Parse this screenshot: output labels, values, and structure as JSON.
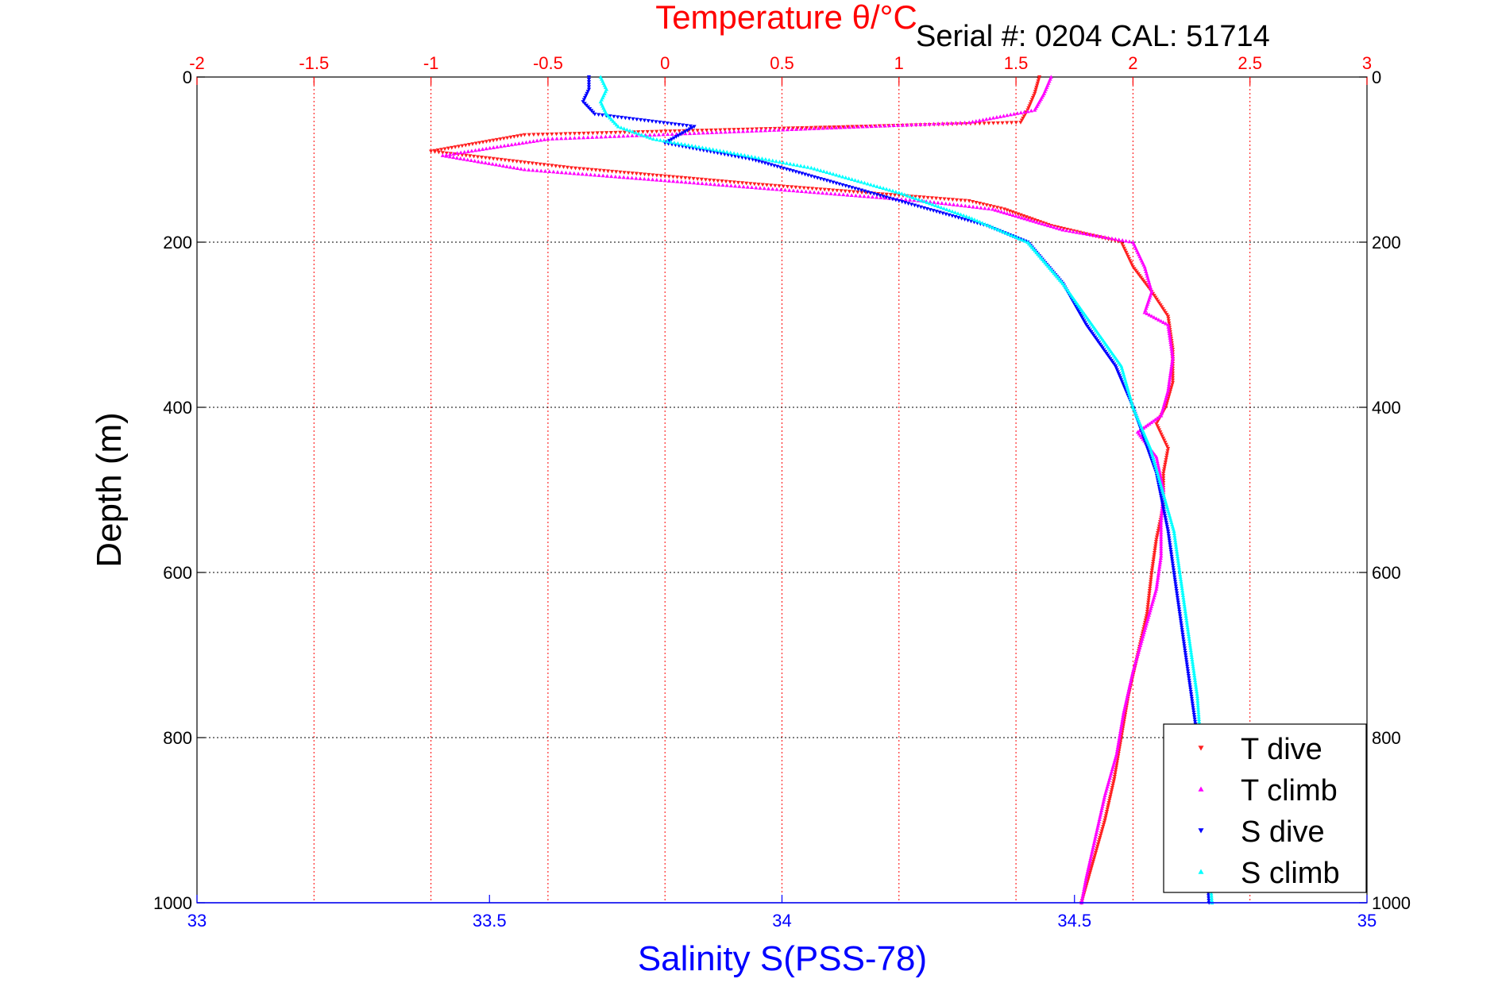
{
  "chart_data": {
    "type": "scatter",
    "title": "Temperature θ/°C",
    "subtitle": "Serial #: 0204  CAL: 51714",
    "xlabel_bottom": "Salinity S(PSS-78)",
    "xlabel_top": "Temperature θ/°C",
    "ylabel": "Depth (m)",
    "xlim_bottom": [
      33,
      35
    ],
    "xlim_top": [
      -2,
      3
    ],
    "ylim": [
      0,
      1000
    ],
    "y_reversed": true,
    "grid": true,
    "legend_position": "bottom-right",
    "top_ticks": [
      "-2",
      "-1.5",
      "-1",
      "-0.5",
      "0",
      "0.5",
      "1",
      "1.5",
      "2",
      "2.5",
      "3"
    ],
    "bottom_ticks": [
      "33",
      "33.5",
      "34",
      "34.5",
      "35"
    ],
    "left_ticks": [
      "0",
      "200",
      "400",
      "600",
      "800",
      "1000"
    ],
    "right_ticks": [
      "0",
      "200",
      "400",
      "600",
      "800",
      "1000"
    ],
    "colors": {
      "temperature_axis": "#ff0000",
      "salinity_axis": "#0000ff",
      "grid_temperature": "#ff0000",
      "grid_depth": "#000000"
    },
    "series": [
      {
        "name": "T dive",
        "axis": "top",
        "color": "#ff2020",
        "marker": "triangle-down",
        "points": [
          [
            1.6,
            0
          ],
          [
            1.58,
            20
          ],
          [
            1.55,
            40
          ],
          [
            1.52,
            55
          ],
          [
            -0.6,
            70
          ],
          [
            -1.0,
            90
          ],
          [
            -0.4,
            110
          ],
          [
            0.4,
            130
          ],
          [
            1.3,
            150
          ],
          [
            1.45,
            160
          ],
          [
            1.65,
            180
          ],
          [
            1.95,
            200
          ],
          [
            2.0,
            230
          ],
          [
            2.08,
            260
          ],
          [
            2.15,
            290
          ],
          [
            2.17,
            330
          ],
          [
            2.17,
            370
          ],
          [
            2.14,
            400
          ],
          [
            2.1,
            420
          ],
          [
            2.15,
            450
          ],
          [
            2.13,
            480
          ],
          [
            2.13,
            520
          ],
          [
            2.1,
            560
          ],
          [
            2.08,
            600
          ],
          [
            2.06,
            650
          ],
          [
            2.02,
            700
          ],
          [
            1.98,
            750
          ],
          [
            1.95,
            800
          ],
          [
            1.92,
            850
          ],
          [
            1.88,
            900
          ],
          [
            1.83,
            950
          ],
          [
            1.78,
            1000
          ]
        ]
      },
      {
        "name": "T climb",
        "axis": "top",
        "color": "#ff00ff",
        "marker": "triangle-up",
        "points": [
          [
            1.65,
            0
          ],
          [
            1.62,
            20
          ],
          [
            1.58,
            40
          ],
          [
            1.3,
            55
          ],
          [
            -0.5,
            75
          ],
          [
            -0.95,
            95
          ],
          [
            -0.6,
            112
          ],
          [
            0.3,
            132
          ],
          [
            1.1,
            150
          ],
          [
            1.4,
            160
          ],
          [
            1.7,
            185
          ],
          [
            2.0,
            200
          ],
          [
            2.05,
            230
          ],
          [
            2.08,
            260
          ],
          [
            2.05,
            285
          ],
          [
            2.15,
            300
          ],
          [
            2.17,
            340
          ],
          [
            2.15,
            380
          ],
          [
            2.12,
            410
          ],
          [
            2.02,
            430
          ],
          [
            2.1,
            460
          ],
          [
            2.13,
            500
          ],
          [
            2.12,
            540
          ],
          [
            2.12,
            580
          ],
          [
            2.1,
            620
          ],
          [
            2.05,
            670
          ],
          [
            2.0,
            720
          ],
          [
            1.96,
            770
          ],
          [
            1.93,
            820
          ],
          [
            1.88,
            870
          ],
          [
            1.84,
            920
          ],
          [
            1.8,
            970
          ],
          [
            1.78,
            1000
          ]
        ]
      },
      {
        "name": "S dive",
        "axis": "bottom",
        "color": "#0000ff",
        "marker": "triangle-down",
        "points": [
          [
            33.67,
            0
          ],
          [
            33.67,
            15
          ],
          [
            33.66,
            30
          ],
          [
            33.68,
            45
          ],
          [
            33.85,
            60
          ],
          [
            33.8,
            80
          ],
          [
            33.95,
            100
          ],
          [
            34.05,
            120
          ],
          [
            34.2,
            150
          ],
          [
            34.35,
            180
          ],
          [
            34.42,
            200
          ],
          [
            34.48,
            250
          ],
          [
            34.52,
            300
          ],
          [
            34.57,
            350
          ],
          [
            34.6,
            400
          ],
          [
            34.62,
            440
          ],
          [
            34.64,
            480
          ],
          [
            34.66,
            550
          ],
          [
            34.67,
            600
          ],
          [
            34.68,
            650
          ],
          [
            34.69,
            700
          ],
          [
            34.7,
            750
          ],
          [
            34.71,
            800
          ],
          [
            34.715,
            850
          ],
          [
            34.72,
            900
          ],
          [
            34.725,
            950
          ],
          [
            34.73,
            1000
          ]
        ]
      },
      {
        "name": "S climb",
        "axis": "bottom",
        "color": "#00ffff",
        "marker": "triangle-up",
        "points": [
          [
            33.69,
            0
          ],
          [
            33.7,
            15
          ],
          [
            33.69,
            30
          ],
          [
            33.7,
            45
          ],
          [
            33.72,
            60
          ],
          [
            33.78,
            75
          ],
          [
            33.9,
            90
          ],
          [
            34.05,
            110
          ],
          [
            34.2,
            140
          ],
          [
            34.32,
            170
          ],
          [
            34.42,
            200
          ],
          [
            34.48,
            250
          ],
          [
            34.53,
            300
          ],
          [
            34.58,
            350
          ],
          [
            34.6,
            400
          ],
          [
            34.63,
            450
          ],
          [
            34.65,
            500
          ],
          [
            34.67,
            550
          ],
          [
            34.68,
            600
          ],
          [
            34.69,
            650
          ],
          [
            34.7,
            700
          ],
          [
            34.71,
            750
          ],
          [
            34.715,
            800
          ],
          [
            34.72,
            850
          ],
          [
            34.725,
            900
          ],
          [
            34.73,
            950
          ],
          [
            34.735,
            1000
          ]
        ]
      }
    ]
  }
}
